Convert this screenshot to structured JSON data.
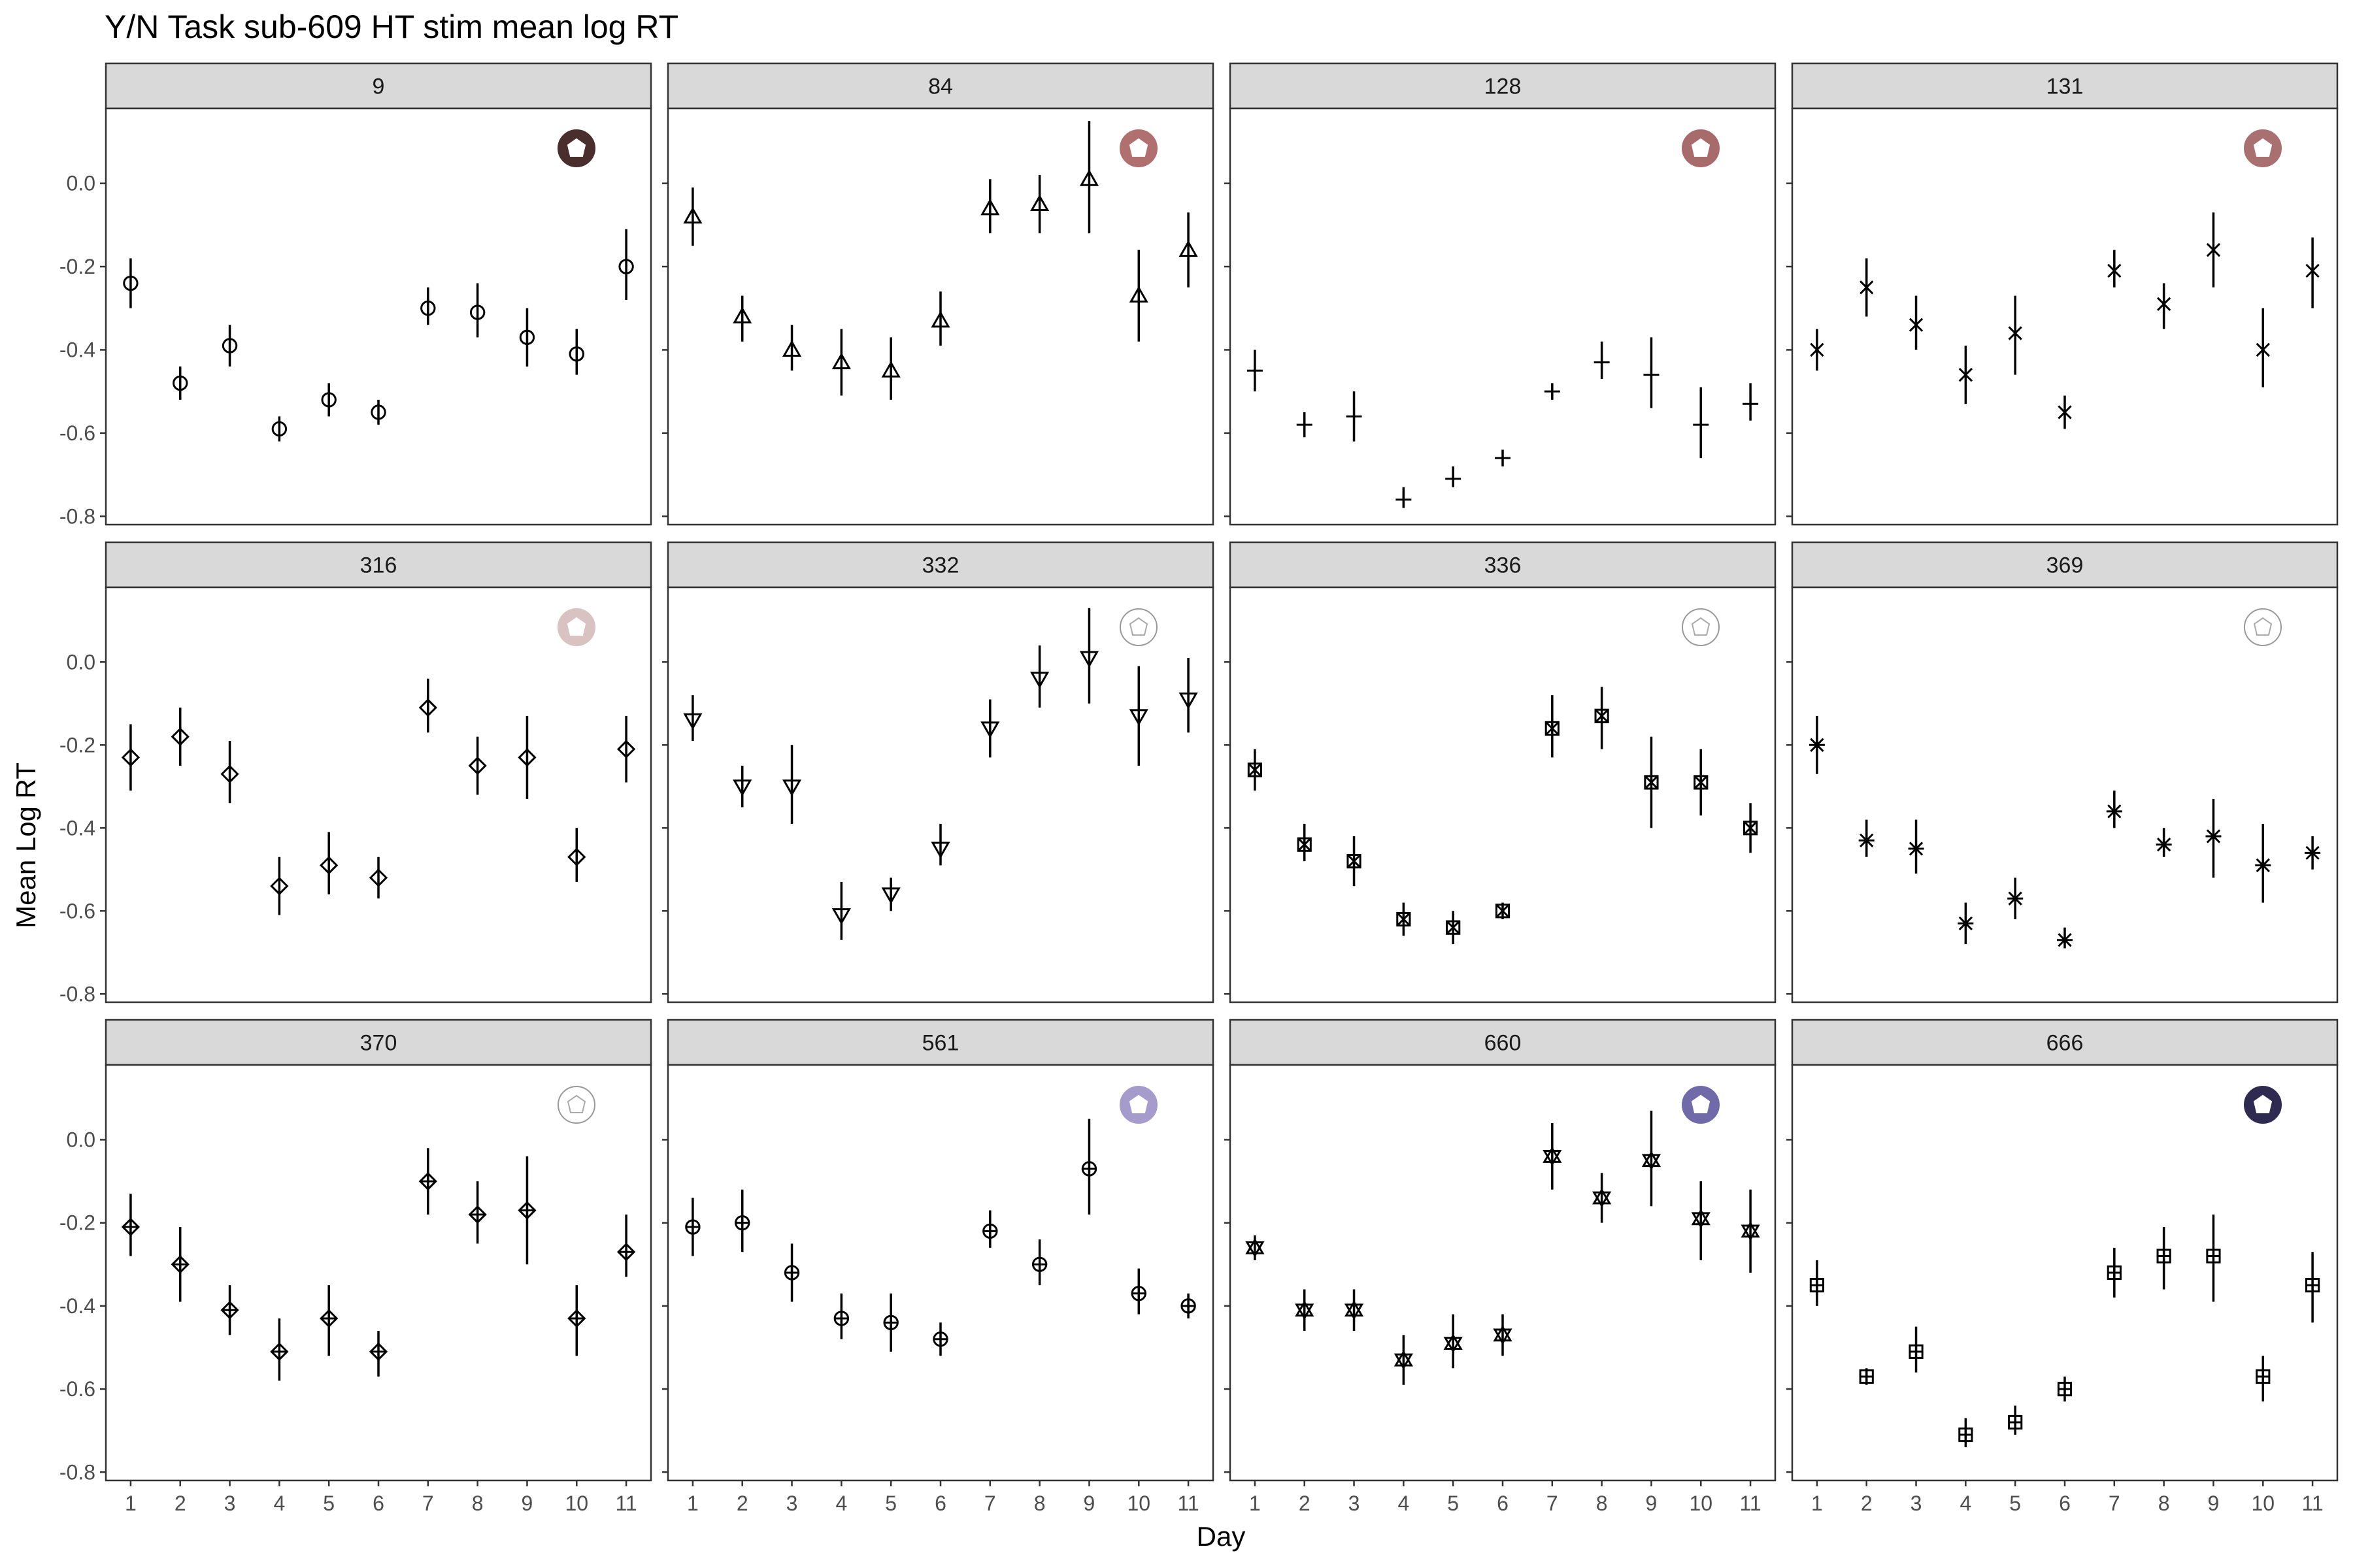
{
  "chart_data": {
    "type": "scatter",
    "title": "Y/N Task sub-609 HT stim mean log RT",
    "xlabel": "Day",
    "ylabel": "Mean Log RT",
    "x_ticks": [
      "1",
      "2",
      "3",
      "4",
      "5",
      "6",
      "7",
      "8",
      "9",
      "10",
      "11"
    ],
    "y_ticks": [
      "0.0",
      "-0.2",
      "-0.4",
      "-0.6",
      "-0.8"
    ],
    "ylim": [
      -0.82,
      0.18
    ],
    "xlim": [
      0.5,
      11.5
    ],
    "grid": false,
    "error_bars": true,
    "x": [
      1,
      2,
      3,
      4,
      5,
      6,
      7,
      8,
      9,
      10,
      11
    ],
    "panels": [
      {
        "label": "9",
        "marker": "circle",
        "icon_color": "#4a2e2e",
        "mean": [
          -0.24,
          -0.48,
          -0.39,
          -0.59,
          -0.52,
          -0.55,
          -0.3,
          -0.31,
          -0.37,
          -0.41,
          -0.2
        ],
        "lower": [
          -0.3,
          -0.52,
          -0.44,
          -0.62,
          -0.56,
          -0.58,
          -0.34,
          -0.37,
          -0.44,
          -0.46,
          -0.28
        ],
        "upper": [
          -0.18,
          -0.44,
          -0.34,
          -0.56,
          -0.48,
          -0.52,
          -0.25,
          -0.24,
          -0.3,
          -0.35,
          -0.11
        ]
      },
      {
        "label": "84",
        "marker": "triangle-up",
        "icon_color": "#b07070",
        "mean": [
          -0.08,
          -0.32,
          -0.4,
          -0.43,
          -0.45,
          -0.33,
          -0.06,
          -0.05,
          0.01,
          -0.27,
          -0.16
        ],
        "lower": [
          -0.15,
          -0.38,
          -0.45,
          -0.51,
          -0.52,
          -0.39,
          -0.12,
          -0.12,
          -0.12,
          -0.38,
          -0.25
        ],
        "upper": [
          -0.01,
          -0.27,
          -0.34,
          -0.35,
          -0.37,
          -0.26,
          0.01,
          0.02,
          0.15,
          -0.16,
          -0.07
        ]
      },
      {
        "label": "128",
        "marker": "plus",
        "icon_color": "#a86b6b",
        "mean": [
          -0.45,
          -0.58,
          -0.56,
          -0.76,
          -0.71,
          -0.66,
          -0.5,
          -0.43,
          -0.46,
          -0.58,
          -0.53
        ],
        "lower": [
          -0.5,
          -0.61,
          -0.62,
          -0.78,
          -0.73,
          -0.68,
          -0.52,
          -0.47,
          -0.54,
          -0.66,
          -0.57
        ],
        "upper": [
          -0.4,
          -0.55,
          -0.5,
          -0.73,
          -0.68,
          -0.64,
          -0.48,
          -0.38,
          -0.37,
          -0.49,
          -0.48
        ]
      },
      {
        "label": "131",
        "marker": "cross",
        "icon_color": "#a87070",
        "mean": [
          -0.4,
          -0.25,
          -0.34,
          -0.46,
          -0.36,
          -0.55,
          -0.21,
          -0.29,
          -0.16,
          -0.4,
          -0.21
        ],
        "lower": [
          -0.45,
          -0.32,
          -0.4,
          -0.53,
          -0.46,
          -0.59,
          -0.25,
          -0.35,
          -0.25,
          -0.49,
          -0.3
        ],
        "upper": [
          -0.35,
          -0.18,
          -0.27,
          -0.39,
          -0.27,
          -0.51,
          -0.16,
          -0.24,
          -0.07,
          -0.3,
          -0.13
        ]
      },
      {
        "label": "316",
        "marker": "diamond",
        "icon_color": "#d8c2c2",
        "mean": [
          -0.23,
          -0.18,
          -0.27,
          -0.54,
          -0.49,
          -0.52,
          -0.11,
          -0.25,
          -0.23,
          -0.47,
          -0.21
        ],
        "lower": [
          -0.31,
          -0.25,
          -0.34,
          -0.61,
          -0.56,
          -0.57,
          -0.17,
          -0.32,
          -0.33,
          -0.53,
          -0.29
        ],
        "upper": [
          -0.15,
          -0.11,
          -0.19,
          -0.47,
          -0.41,
          -0.47,
          -0.04,
          -0.18,
          -0.13,
          -0.4,
          -0.13
        ]
      },
      {
        "label": "332",
        "marker": "triangle-down",
        "icon_color": "#ffffff",
        "mean": [
          -0.14,
          -0.3,
          -0.3,
          -0.61,
          -0.56,
          -0.45,
          -0.16,
          -0.04,
          0.01,
          -0.13,
          -0.09
        ],
        "lower": [
          -0.19,
          -0.35,
          -0.39,
          -0.67,
          -0.6,
          -0.49,
          -0.23,
          -0.11,
          -0.1,
          -0.25,
          -0.17
        ],
        "upper": [
          -0.08,
          -0.25,
          -0.2,
          -0.53,
          -0.52,
          -0.39,
          -0.09,
          0.04,
          0.13,
          -0.01,
          0.01
        ]
      },
      {
        "label": "336",
        "marker": "square-cross",
        "icon_color": "#ffffff",
        "mean": [
          -0.26,
          -0.44,
          -0.48,
          -0.62,
          -0.64,
          -0.6,
          -0.16,
          -0.13,
          -0.29,
          -0.29,
          -0.4
        ],
        "lower": [
          -0.31,
          -0.48,
          -0.54,
          -0.66,
          -0.68,
          -0.62,
          -0.23,
          -0.21,
          -0.4,
          -0.37,
          -0.46
        ],
        "upper": [
          -0.21,
          -0.39,
          -0.42,
          -0.58,
          -0.6,
          -0.58,
          -0.08,
          -0.06,
          -0.18,
          -0.21,
          -0.34
        ]
      },
      {
        "label": "369",
        "marker": "asterisk",
        "icon_color": "#ffffff",
        "mean": [
          -0.2,
          -0.43,
          -0.45,
          -0.63,
          -0.57,
          -0.67,
          -0.36,
          -0.44,
          -0.42,
          -0.49,
          -0.46
        ],
        "lower": [
          -0.27,
          -0.47,
          -0.51,
          -0.68,
          -0.62,
          -0.69,
          -0.4,
          -0.47,
          -0.52,
          -0.58,
          -0.5
        ],
        "upper": [
          -0.13,
          -0.38,
          -0.38,
          -0.58,
          -0.52,
          -0.64,
          -0.31,
          -0.4,
          -0.33,
          -0.39,
          -0.42
        ]
      },
      {
        "label": "370",
        "marker": "diamond-plus",
        "icon_color": "#ffffff",
        "mean": [
          -0.21,
          -0.3,
          -0.41,
          -0.51,
          -0.43,
          -0.51,
          -0.1,
          -0.18,
          -0.17,
          -0.43,
          -0.27
        ],
        "lower": [
          -0.28,
          -0.39,
          -0.47,
          -0.58,
          -0.52,
          -0.57,
          -0.18,
          -0.25,
          -0.3,
          -0.52,
          -0.33
        ],
        "upper": [
          -0.13,
          -0.21,
          -0.35,
          -0.43,
          -0.35,
          -0.46,
          -0.02,
          -0.1,
          -0.04,
          -0.35,
          -0.18
        ]
      },
      {
        "label": "561",
        "marker": "circle-plus",
        "icon_color": "#a59ccb",
        "mean": [
          -0.21,
          -0.2,
          -0.32,
          -0.43,
          -0.44,
          -0.48,
          -0.22,
          -0.3,
          -0.07,
          -0.37,
          -0.4
        ],
        "lower": [
          -0.28,
          -0.27,
          -0.39,
          -0.48,
          -0.51,
          -0.52,
          -0.26,
          -0.35,
          -0.18,
          -0.42,
          -0.43
        ],
        "upper": [
          -0.14,
          -0.12,
          -0.25,
          -0.37,
          -0.37,
          -0.44,
          -0.17,
          -0.24,
          0.05,
          -0.31,
          -0.37
        ]
      },
      {
        "label": "660",
        "marker": "triangle-star",
        "icon_color": "#716aa8",
        "mean": [
          -0.26,
          -0.41,
          -0.41,
          -0.53,
          -0.49,
          -0.47,
          -0.04,
          -0.14,
          -0.05,
          -0.19,
          -0.22
        ],
        "lower": [
          -0.29,
          -0.46,
          -0.46,
          -0.59,
          -0.55,
          -0.52,
          -0.12,
          -0.2,
          -0.16,
          -0.29,
          -0.32
        ],
        "upper": [
          -0.23,
          -0.36,
          -0.36,
          -0.47,
          -0.42,
          -0.42,
          0.04,
          -0.08,
          0.07,
          -0.1,
          -0.12
        ]
      },
      {
        "label": "666",
        "marker": "square-plus",
        "icon_color": "#2f2b50",
        "mean": [
          -0.35,
          -0.57,
          -0.51,
          -0.71,
          -0.68,
          -0.6,
          -0.32,
          -0.28,
          -0.28,
          -0.57,
          -0.35
        ],
        "lower": [
          -0.4,
          -0.59,
          -0.56,
          -0.74,
          -0.71,
          -0.63,
          -0.38,
          -0.36,
          -0.39,
          -0.63,
          -0.44
        ],
        "upper": [
          -0.29,
          -0.55,
          -0.45,
          -0.67,
          -0.64,
          -0.57,
          -0.26,
          -0.21,
          -0.18,
          -0.52,
          -0.27
        ]
      }
    ]
  }
}
